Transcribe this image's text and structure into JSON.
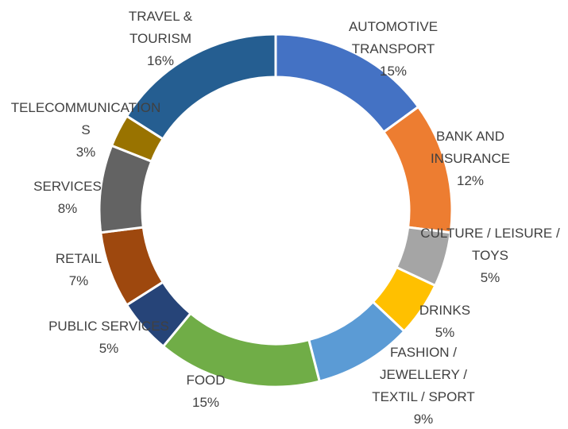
{
  "chart_data": {
    "type": "donut",
    "categories": [
      "AUTOMOTIVE TRANSPORT",
      "BANK AND INSURANCE",
      "CULTURE / LEISURE / TOYS",
      "DRINKS",
      "FASHION / JEWELLERY / TEXTIL / SPORT",
      "FOOD",
      "PUBLIC SERVICES",
      "RETAIL",
      "SERVICES",
      "TELECOMMUNICATIONS",
      "TRAVEL & TOURISM"
    ],
    "values": [
      15,
      12,
      5,
      5,
      9,
      15,
      5,
      7,
      8,
      3,
      16
    ],
    "value_labels": [
      "15%",
      "12%",
      "5%",
      "5%",
      "9%",
      "15%",
      "5%",
      "7%",
      "8%",
      "3%",
      "16%"
    ],
    "colors": [
      "#4472c4",
      "#ed7d31",
      "#a5a5a5",
      "#ffc000",
      "#5b9bd5",
      "#70ad47",
      "#264478",
      "#9e480e",
      "#636363",
      "#997300",
      "#255e91"
    ]
  }
}
